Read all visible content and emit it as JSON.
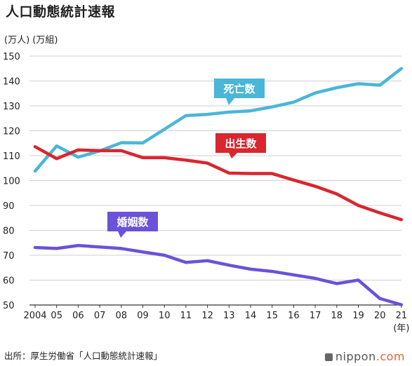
{
  "title": "人口動態統計速報",
  "unit_label": "(万人) (万組)",
  "source": "出所：厚生労働省「人口動態統計速報」",
  "logo": {
    "prefix": "nippon",
    "suffix": ".com",
    "icon": "nippon-logo-icon"
  },
  "chart_data": {
    "type": "line",
    "categories": [
      "2004",
      "05",
      "06",
      "07",
      "08",
      "09",
      "10",
      "11",
      "12",
      "13",
      "14",
      "15",
      "16",
      "17",
      "18",
      "19",
      "20",
      "21"
    ],
    "x_unit": "(年)",
    "ylim": [
      50,
      150
    ],
    "yticks": [
      50,
      60,
      70,
      80,
      90,
      100,
      110,
      120,
      130,
      140,
      150
    ],
    "grid": true,
    "series": [
      {
        "name": "死亡数",
        "color": "#4ab6d8",
        "values": [
          103.8,
          113.9,
          109.4,
          111.9,
          115.2,
          115.1,
          120.6,
          126.1,
          126.6,
          127.5,
          128.0,
          129.6,
          131.5,
          135.2,
          137.3,
          138.9,
          138.3,
          145.0
        ]
      },
      {
        "name": "出生数",
        "color": "#d9262f",
        "values": [
          113.6,
          108.8,
          112.3,
          112.0,
          112.0,
          109.2,
          109.2,
          108.2,
          107.0,
          103.0,
          102.8,
          102.8,
          100.2,
          97.7,
          94.6,
          90.0,
          87.0,
          84.3
        ]
      },
      {
        "name": "婚姻数",
        "color": "#6b52d8",
        "values": [
          73.1,
          72.7,
          73.9,
          73.3,
          72.7,
          71.3,
          70.0,
          67.1,
          67.8,
          66.0,
          64.4,
          63.5,
          62.1,
          60.7,
          58.6,
          60.0,
          52.6,
          50.1
        ]
      }
    ]
  }
}
